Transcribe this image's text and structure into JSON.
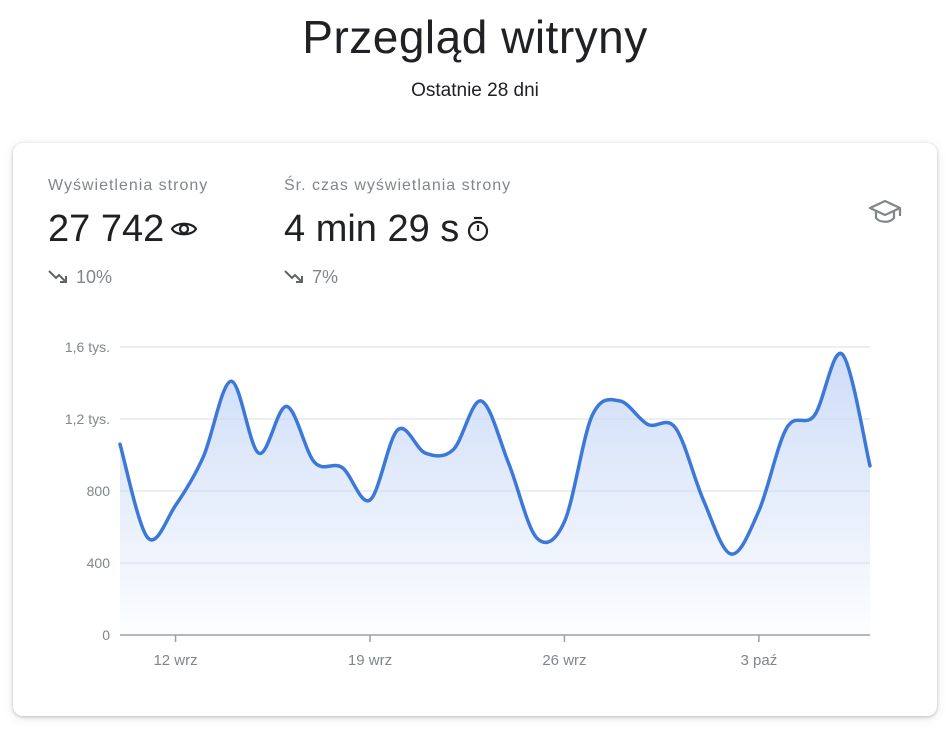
{
  "header": {
    "title": "Przegląd witryny",
    "subtitle": "Ostatnie 28 dni"
  },
  "metrics": [
    {
      "label": "Wyświetlenia strony",
      "value": "27 742",
      "icon": "eye-icon",
      "change": "10%",
      "change_icon": "trending-down-icon"
    },
    {
      "label": "Śr. czas wyświetlania strony",
      "value": "4 min 29 s",
      "icon": "timer-icon",
      "change": "7%",
      "change_icon": "trending-down-icon"
    }
  ],
  "top_right_icon": "school-icon",
  "colors": {
    "line": "#3c78d8",
    "fill_top": "#c9d9f7",
    "grid": "#dadce0",
    "text_muted": "#80868b"
  },
  "chart_data": {
    "type": "area",
    "y_ticks": [
      {
        "value": 0,
        "label": "0"
      },
      {
        "value": 400,
        "label": "400"
      },
      {
        "value": 800,
        "label": "800"
      },
      {
        "value": 1200,
        "label": "1,2 tys."
      },
      {
        "value": 1600,
        "label": "1,6 tys."
      }
    ],
    "x_ticks": [
      {
        "date": "12 wrz",
        "label": "12 wrz"
      },
      {
        "date": "19 wrz",
        "label": "19 wrz"
      },
      {
        "date": "26 wrz",
        "label": "26 wrz"
      },
      {
        "date": "3 paź",
        "label": "3 paź"
      }
    ],
    "ylim": [
      0,
      1600
    ],
    "grid": true,
    "x": [
      "10 wrz",
      "11 wrz",
      "12 wrz",
      "13 wrz",
      "14 wrz",
      "15 wrz",
      "16 wrz",
      "17 wrz",
      "18 wrz",
      "19 wrz",
      "20 wrz",
      "21 wrz",
      "22 wrz",
      "23 wrz",
      "24 wrz",
      "25 wrz",
      "26 wrz",
      "27 wrz",
      "28 wrz",
      "29 wrz",
      "30 wrz",
      "1 paź",
      "2 paź",
      "3 paź",
      "4 paź",
      "5 paź",
      "6 paź",
      "7 paź"
    ],
    "values": [
      1060,
      540,
      720,
      990,
      1410,
      1010,
      1270,
      960,
      930,
      750,
      1140,
      1010,
      1030,
      1300,
      950,
      540,
      630,
      1220,
      1300,
      1170,
      1150,
      750,
      450,
      690,
      1150,
      1220,
      1560,
      940
    ]
  }
}
